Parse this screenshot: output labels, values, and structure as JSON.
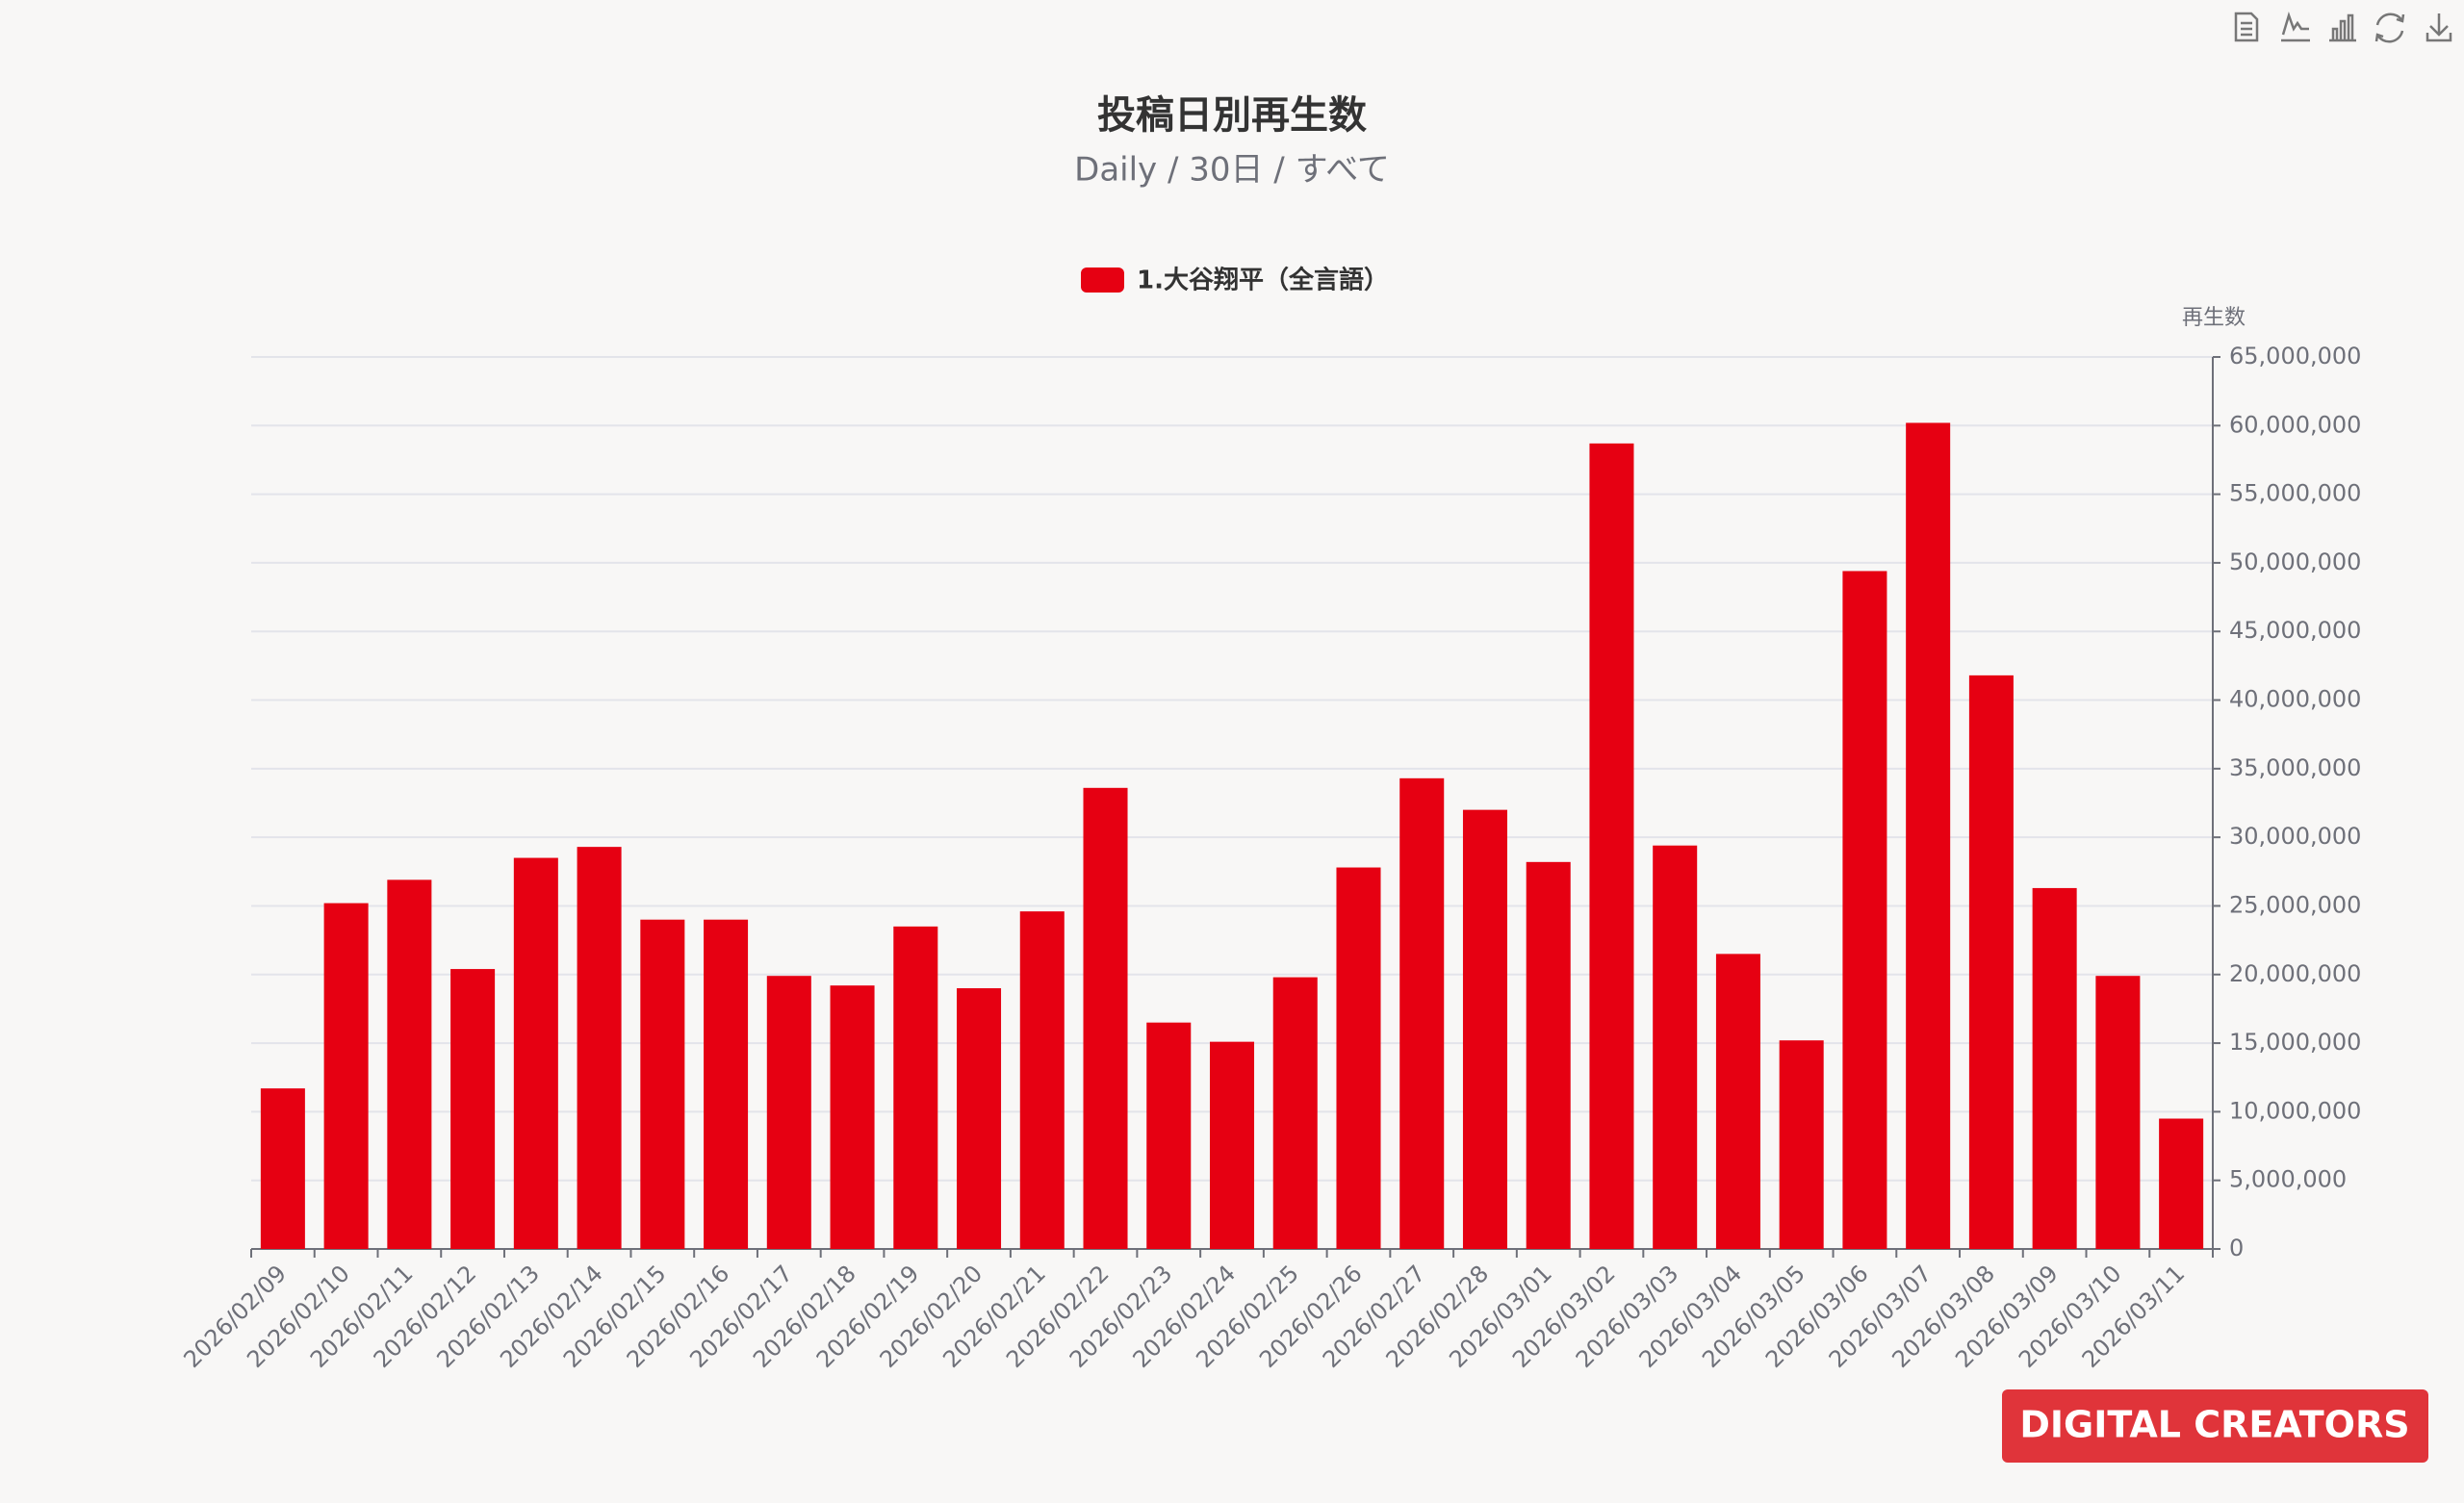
{
  "chart_data": {
    "type": "bar",
    "title": "投稿日別再生数",
    "subtitle": "Daily / 30日 / すべて",
    "y_axis_label": "再生数",
    "logo": "DIGITAL CREATORS",
    "categories": [
      "2026/02/09",
      "2026/02/10",
      "2026/02/11",
      "2026/02/12",
      "2026/02/13",
      "2026/02/14",
      "2026/02/15",
      "2026/02/16",
      "2026/02/17",
      "2026/02/18",
      "2026/02/19",
      "2026/02/20",
      "2026/02/21",
      "2026/02/22",
      "2026/02/23",
      "2026/02/24",
      "2026/02/25",
      "2026/02/26",
      "2026/02/27",
      "2026/02/28",
      "2026/03/01",
      "2026/03/02",
      "2026/03/03",
      "2026/03/04",
      "2026/03/05",
      "2026/03/06",
      "2026/03/07",
      "2026/03/08",
      "2026/03/09",
      "2026/03/10",
      "2026/03/11"
    ],
    "series": [
      {
        "name": "1.大谷翔平（全言語）",
        "color": "#e60012",
        "values": [
          11700000,
          25200000,
          26900000,
          20400000,
          28500000,
          29300000,
          24000000,
          24000000,
          19900000,
          19200000,
          23500000,
          19000000,
          24600000,
          33600000,
          16500000,
          15100000,
          19800000,
          27800000,
          34300000,
          32000000,
          28200000,
          58700000,
          29400000,
          21500000,
          15200000,
          49400000,
          60200000,
          41800000,
          26300000,
          19900000,
          9500000
        ]
      }
    ],
    "ylim": [
      0,
      65000000
    ],
    "yticks": [
      0,
      {
        "value": 5000000,
        "label": "5,000,000"
      },
      {
        "value": 10000000,
        "label": "10,000,000"
      },
      {
        "value": 15000000,
        "label": "15,000,000"
      },
      {
        "value": 20000000,
        "label": "20,000,000"
      },
      {
        "value": 25000000,
        "label": "25,000,000"
      },
      {
        "value": 30000000,
        "label": "30,000,000"
      },
      {
        "value": 35000000,
        "label": "35,000,000"
      },
      {
        "value": 40000000,
        "label": "40,000,000"
      },
      {
        "value": 45000000,
        "label": "45,000,000"
      },
      {
        "value": 50000000,
        "label": "50,000,000"
      },
      {
        "value": 55000000,
        "label": "55,000,000"
      },
      {
        "value": 60000000,
        "label": "60,000,000"
      },
      {
        "value": 65000000,
        "label": "65,000,000"
      }
    ],
    "grid": true,
    "legend": "top"
  }
}
